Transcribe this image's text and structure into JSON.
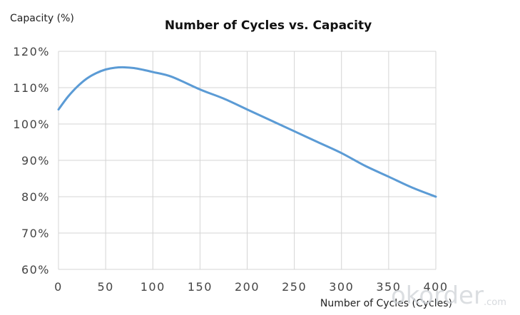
{
  "chart_data": {
    "type": "line",
    "title": "Number of Cycles vs. Capacity",
    "xlabel": "Number of Cycles (Cycles)",
    "ylabel": "Capacity (%)",
    "xlim": [
      0,
      400
    ],
    "ylim": [
      60,
      120
    ],
    "x_ticks": [
      0,
      50,
      100,
      150,
      200,
      250,
      300,
      350,
      400
    ],
    "y_ticks": [
      60,
      70,
      80,
      90,
      100,
      110,
      120
    ],
    "x_tick_labels": [
      "0",
      "50",
      "100",
      "150",
      "200",
      "250",
      "300",
      "350",
      "400"
    ],
    "y_tick_labels": [
      "60%",
      "70%",
      "80%",
      "90%",
      "100%",
      "110%",
      "120%"
    ],
    "grid": true,
    "series": [
      {
        "color": "#5b9bd5",
        "x": [
          0,
          10,
          20,
          30,
          40,
          50,
          60,
          70,
          80,
          90,
          100,
          120,
          150,
          175,
          200,
          225,
          250,
          275,
          300,
          325,
          350,
          375,
          400
        ],
        "y": [
          104,
          107.5,
          110.3,
          112.5,
          114,
          115,
          115.5,
          115.6,
          115.4,
          114.9,
          114.3,
          113,
          109.5,
          107,
          104,
          101,
          98,
          95,
          92,
          88.5,
          85.5,
          82.5,
          80
        ]
      }
    ]
  },
  "watermark": {
    "main": "okorder",
    "sub": ".com"
  }
}
